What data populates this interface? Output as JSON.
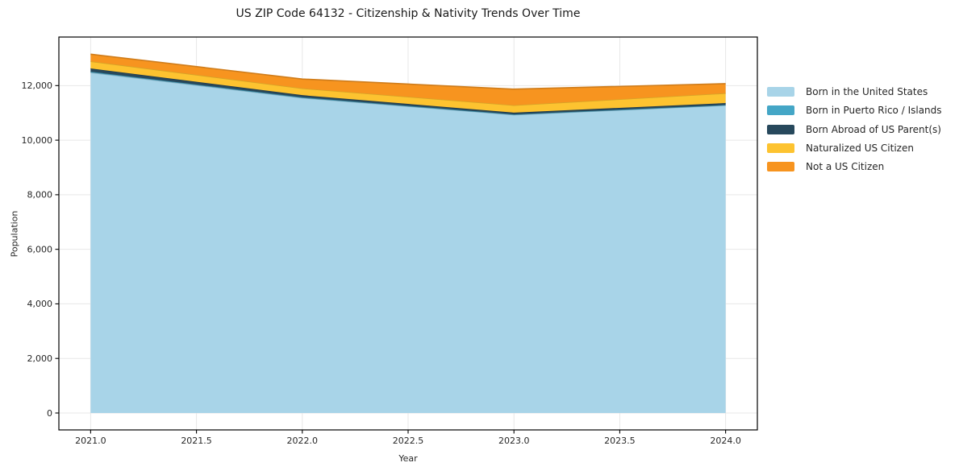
{
  "chart_data": {
    "type": "area",
    "stacked": true,
    "title": "US ZIP Code 64132 - Citizenship & Nativity Trends Over Time",
    "xlabel": "Year",
    "ylabel": "Population",
    "x": [
      2021,
      2022,
      2023,
      2024
    ],
    "series": [
      {
        "name": "Born in the United States",
        "color": "#a8d4e8",
        "values": [
          12480,
          11550,
          10930,
          11280
        ]
      },
      {
        "name": "Born in Puerto Rico / Islands",
        "color": "#44a6c6",
        "values": [
          30,
          20,
          15,
          10
        ]
      },
      {
        "name": "Born Abroad of US Parent(s)",
        "color": "#27485c",
        "values": [
          120,
          80,
          65,
          70
        ]
      },
      {
        "name": "Naturalized US Citizen",
        "color": "#fdc330",
        "values": [
          260,
          250,
          270,
          360
        ]
      },
      {
        "name": "Not a US Citizen",
        "color": "#f7941f",
        "values": [
          260,
          340,
          590,
          350
        ]
      }
    ],
    "totals": [
      13150,
      12240,
      11870,
      12070
    ],
    "xlim": [
      2020.85,
      2024.15
    ],
    "ylim": [
      -620,
      13780
    ],
    "xticks": {
      "values": [
        2021.0,
        2021.5,
        2022.0,
        2022.5,
        2023.0,
        2023.5,
        2024.0
      ],
      "labels": [
        "2021.0",
        "2021.5",
        "2022.0",
        "2022.5",
        "2023.0",
        "2023.5",
        "2024.0"
      ]
    },
    "yticks": {
      "values": [
        0,
        2000,
        4000,
        6000,
        8000,
        10000,
        12000
      ],
      "labels": [
        "0",
        "2,000",
        "4,000",
        "6,000",
        "8,000",
        "10,000",
        "12,000"
      ]
    },
    "grid": true,
    "grid_color": "#e7e7e7",
    "frame_color": "#000000",
    "tick_color": "#262626",
    "legend_position": "right"
  }
}
